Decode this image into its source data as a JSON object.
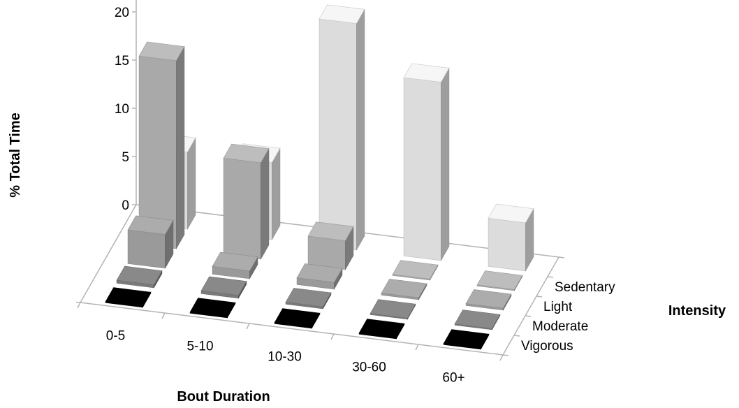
{
  "chart_data": {
    "type": "bar",
    "variant": "3d-column",
    "title": "",
    "xlabel": "Bout Duration",
    "ylabel": "% Total Time",
    "zlabel": "Intensity",
    "categories": [
      "0-5",
      "5-10",
      "10-30",
      "30-60",
      "60+"
    ],
    "series": [
      {
        "name": "Vigorous",
        "values": [
          0.1,
          0.1,
          0.1,
          0.1,
          0.1
        ],
        "color": "#000000"
      },
      {
        "name": "Moderate",
        "values": [
          0.3,
          0.3,
          0.2,
          0.1,
          0.1
        ],
        "color": "#7a7a7a"
      },
      {
        "name": "Light",
        "values": [
          3.5,
          0.8,
          0.7,
          0.2,
          0.2
        ],
        "color": "#9a9a9a"
      },
      {
        "name": "Sedentary",
        "values": [
          19.5,
          10.0,
          3.0,
          0.0,
          0.0
        ],
        "color": "#a9a9a9"
      }
    ],
    "back_series": {
      "name": "Sedentary",
      "values": [
        8.0,
        8.0,
        23.5,
        18.5,
        5.0
      ],
      "color": "#dcdcdc"
    },
    "ylim": [
      0,
      30
    ],
    "yticks": [
      "0",
      "5",
      "10",
      "15",
      "20",
      "25",
      "30"
    ],
    "grid": false,
    "legend": "none"
  }
}
